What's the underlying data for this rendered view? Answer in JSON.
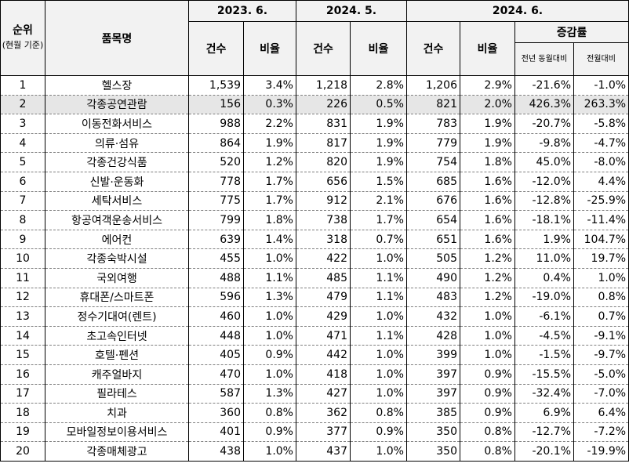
{
  "headers": {
    "rank": "순위",
    "rank_note": "(현월 기준)",
    "item": "품목명",
    "period1": "2023. 6.",
    "period2": "2024. 5.",
    "period3": "2024. 6.",
    "count": "건수",
    "ratio": "비율",
    "change": "증감률",
    "yoy": "전년 동월대비",
    "mom": "전월대비"
  },
  "rows": [
    {
      "rank": "1",
      "item": "헬스장",
      "c1": "1,539",
      "r1": "3.4%",
      "c2": "1,218",
      "r2": "2.8%",
      "c3": "1,206",
      "r3": "2.9%",
      "yoy": "-21.6%",
      "mom": "-1.0%"
    },
    {
      "rank": "2",
      "item": "각종공연관람",
      "c1": "156",
      "r1": "0.3%",
      "c2": "226",
      "r2": "0.5%",
      "c3": "821",
      "r3": "2.0%",
      "yoy": "426.3%",
      "mom": "263.3%"
    },
    {
      "rank": "3",
      "item": "이동전화서비스",
      "c1": "988",
      "r1": "2.2%",
      "c2": "831",
      "r2": "1.9%",
      "c3": "783",
      "r3": "1.9%",
      "yoy": "-20.7%",
      "mom": "-5.8%"
    },
    {
      "rank": "4",
      "item": "의류·섬유",
      "c1": "864",
      "r1": "1.9%",
      "c2": "817",
      "r2": "1.9%",
      "c3": "779",
      "r3": "1.9%",
      "yoy": "-9.8%",
      "mom": "-4.7%"
    },
    {
      "rank": "5",
      "item": "각종건강식품",
      "c1": "520",
      "r1": "1.2%",
      "c2": "820",
      "r2": "1.9%",
      "c3": "754",
      "r3": "1.8%",
      "yoy": "45.0%",
      "mom": "-8.0%"
    },
    {
      "rank": "6",
      "item": "신발·운동화",
      "c1": "778",
      "r1": "1.7%",
      "c2": "656",
      "r2": "1.5%",
      "c3": "685",
      "r3": "1.6%",
      "yoy": "-12.0%",
      "mom": "4.4%"
    },
    {
      "rank": "7",
      "item": "세탁서비스",
      "c1": "775",
      "r1": "1.7%",
      "c2": "912",
      "r2": "2.1%",
      "c3": "676",
      "r3": "1.6%",
      "yoy": "-12.8%",
      "mom": "-25.9%"
    },
    {
      "rank": "8",
      "item": "항공여객운송서비스",
      "c1": "799",
      "r1": "1.8%",
      "c2": "738",
      "r2": "1.7%",
      "c3": "654",
      "r3": "1.6%",
      "yoy": "-18.1%",
      "mom": "-11.4%"
    },
    {
      "rank": "9",
      "item": "에어컨",
      "c1": "639",
      "r1": "1.4%",
      "c2": "318",
      "r2": "0.7%",
      "c3": "651",
      "r3": "1.6%",
      "yoy": "1.9%",
      "mom": "104.7%"
    },
    {
      "rank": "10",
      "item": "각종숙박시설",
      "c1": "455",
      "r1": "1.0%",
      "c2": "422",
      "r2": "1.0%",
      "c3": "505",
      "r3": "1.2%",
      "yoy": "11.0%",
      "mom": "19.7%"
    },
    {
      "rank": "11",
      "item": "국외여행",
      "c1": "488",
      "r1": "1.1%",
      "c2": "485",
      "r2": "1.1%",
      "c3": "490",
      "r3": "1.2%",
      "yoy": "0.4%",
      "mom": "1.0%"
    },
    {
      "rank": "12",
      "item": "휴대폰/스마트폰",
      "c1": "596",
      "r1": "1.3%",
      "c2": "479",
      "r2": "1.1%",
      "c3": "483",
      "r3": "1.2%",
      "yoy": "-19.0%",
      "mom": "0.8%"
    },
    {
      "rank": "13",
      "item": "정수기대여(렌트)",
      "c1": "460",
      "r1": "1.0%",
      "c2": "429",
      "r2": "1.0%",
      "c3": "432",
      "r3": "1.0%",
      "yoy": "-6.1%",
      "mom": "0.7%"
    },
    {
      "rank": "14",
      "item": "초고속인터넷",
      "c1": "448",
      "r1": "1.0%",
      "c2": "471",
      "r2": "1.1%",
      "c3": "428",
      "r3": "1.0%",
      "yoy": "-4.5%",
      "mom": "-9.1%"
    },
    {
      "rank": "15",
      "item": "호텔·펜션",
      "c1": "405",
      "r1": "0.9%",
      "c2": "442",
      "r2": "1.0%",
      "c3": "399",
      "r3": "1.0%",
      "yoy": "-1.5%",
      "mom": "-9.7%"
    },
    {
      "rank": "16",
      "item": "캐주얼바지",
      "c1": "470",
      "r1": "1.0%",
      "c2": "418",
      "r2": "1.0%",
      "c3": "397",
      "r3": "0.9%",
      "yoy": "-15.5%",
      "mom": "-5.0%"
    },
    {
      "rank": "17",
      "item": "필라테스",
      "c1": "587",
      "r1": "1.3%",
      "c2": "427",
      "r2": "1.0%",
      "c3": "397",
      "r3": "0.9%",
      "yoy": "-32.4%",
      "mom": "-7.0%"
    },
    {
      "rank": "18",
      "item": "치과",
      "c1": "360",
      "r1": "0.8%",
      "c2": "362",
      "r2": "0.8%",
      "c3": "385",
      "r3": "0.9%",
      "yoy": "6.9%",
      "mom": "6.4%"
    },
    {
      "rank": "19",
      "item": "모바일정보이용서비스",
      "c1": "401",
      "r1": "0.9%",
      "c2": "377",
      "r2": "0.9%",
      "c3": "350",
      "r3": "0.8%",
      "yoy": "-12.7%",
      "mom": "-7.2%"
    },
    {
      "rank": "20",
      "item": "각종매체광고",
      "c1": "438",
      "r1": "1.0%",
      "c2": "437",
      "r2": "1.0%",
      "c3": "350",
      "r3": "0.8%",
      "yoy": "-20.1%",
      "mom": "-19.9%"
    }
  ]
}
